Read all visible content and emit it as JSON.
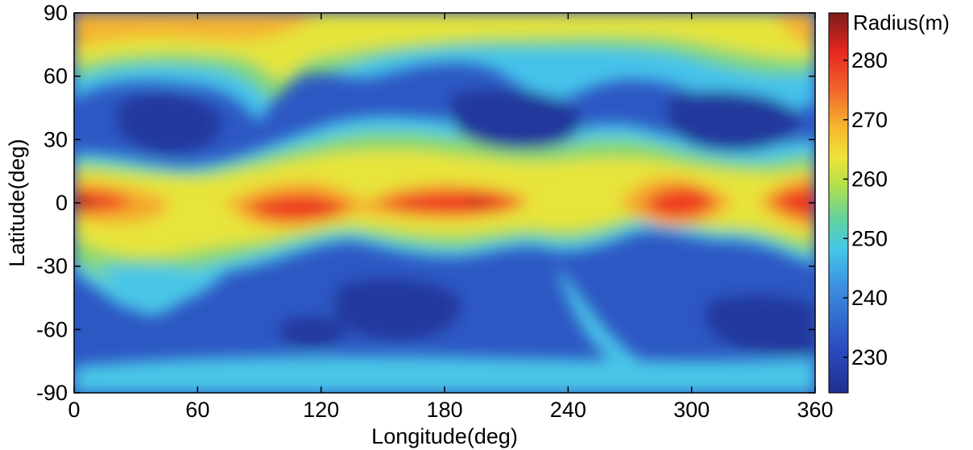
{
  "chart_data": {
    "type": "heatmap",
    "title": "",
    "xlabel": "Longitude(deg)",
    "ylabel": "Latitude(deg)",
    "xlim": [
      0,
      360
    ],
    "ylim": [
      -90,
      90
    ],
    "x_ticks": [
      0,
      60,
      120,
      180,
      240,
      300,
      360
    ],
    "y_ticks": [
      90,
      60,
      30,
      0,
      -30,
      -60,
      -90
    ],
    "grid": false,
    "colormap": "jet",
    "colorbar": {
      "title": "Radius(m)",
      "range": [
        224,
        288
      ],
      "ticks": [
        280,
        270,
        260,
        250,
        240,
        230
      ],
      "placement": "right"
    },
    "legend_placement": "right",
    "features": [
      {
        "name": "equatorial-band-max",
        "lon": 5,
        "lat": 0,
        "value": 286
      },
      {
        "name": "equatorial-band-max",
        "lon": 120,
        "lat": -4,
        "value": 278
      },
      {
        "name": "equatorial-band-max",
        "lon": 195,
        "lat": 0,
        "value": 286
      },
      {
        "name": "equatorial-band-max",
        "lon": 295,
        "lat": 2,
        "value": 277
      },
      {
        "name": "equatorial-band-max",
        "lon": 355,
        "lat": 0,
        "value": 277
      },
      {
        "name": "north-polar-high",
        "lon": 0,
        "lat": 82,
        "value": 264
      },
      {
        "name": "north-polar-high",
        "lon": 360,
        "lat": 82,
        "value": 264
      },
      {
        "name": "mid-latitude-low",
        "lon": 45,
        "lat": 40,
        "value": 231
      },
      {
        "name": "mid-latitude-low",
        "lon": 235,
        "lat": 38,
        "value": 232
      },
      {
        "name": "mid-latitude-low",
        "lon": 315,
        "lat": 40,
        "value": 228
      },
      {
        "name": "mid-latitude-low",
        "lon": 140,
        "lat": -52,
        "value": 228
      },
      {
        "name": "mid-latitude-low",
        "lon": 340,
        "lat": -55,
        "value": 227
      }
    ]
  }
}
